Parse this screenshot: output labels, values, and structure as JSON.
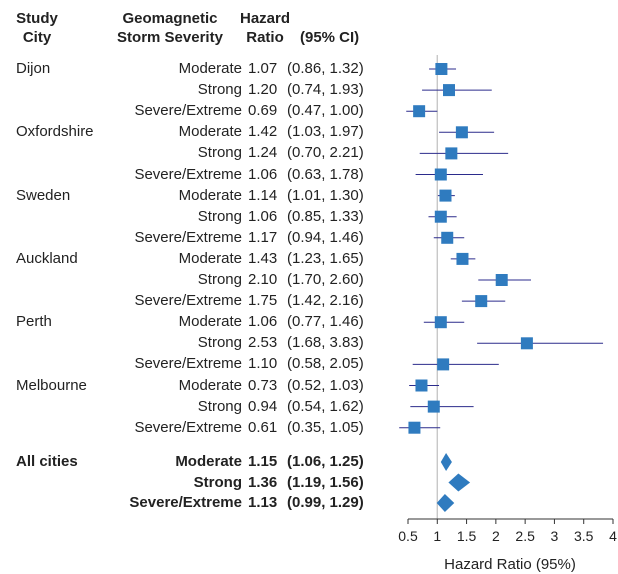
{
  "header": {
    "study_city": "Study City",
    "storm_severity": "Geomagnetic Storm Severity",
    "hazard_ratio": "Hazard Ratio",
    "ci": "(95% CI)"
  },
  "rows": [
    {
      "city": "Dijon",
      "severity": "Moderate",
      "hr_text": "1.07",
      "ci_text": "(0.86, 1.32)",
      "hr": 1.07,
      "lo": 0.86,
      "hi": 1.32
    },
    {
      "city": "",
      "severity": "Strong",
      "hr_text": "1.20",
      "ci_text": "(0.74, 1.93)",
      "hr": 1.2,
      "lo": 0.74,
      "hi": 1.93
    },
    {
      "city": "",
      "severity": "Severe/Extreme",
      "hr_text": "0.69",
      "ci_text": "(0.47, 1.00)",
      "hr": 0.69,
      "lo": 0.47,
      "hi": 1.0
    },
    {
      "city": "Oxfordshire",
      "severity": "Moderate",
      "hr_text": "1.42",
      "ci_text": "(1.03, 1.97)",
      "hr": 1.42,
      "lo": 1.03,
      "hi": 1.97
    },
    {
      "city": "",
      "severity": "Strong",
      "hr_text": "1.24",
      "ci_text": "(0.70, 2.21)",
      "hr": 1.24,
      "lo": 0.7,
      "hi": 2.21
    },
    {
      "city": "",
      "severity": "Severe/Extreme",
      "hr_text": "1.06",
      "ci_text": "(0.63, 1.78)",
      "hr": 1.06,
      "lo": 0.63,
      "hi": 1.78
    },
    {
      "city": "Sweden",
      "severity": "Moderate",
      "hr_text": "1.14",
      "ci_text": "(1.01, 1.30)",
      "hr": 1.14,
      "lo": 1.01,
      "hi": 1.3
    },
    {
      "city": "",
      "severity": "Strong",
      "hr_text": "1.06",
      "ci_text": "(0.85, 1.33)",
      "hr": 1.06,
      "lo": 0.85,
      "hi": 1.33
    },
    {
      "city": "",
      "severity": "Severe/Extreme",
      "hr_text": "1.17",
      "ci_text": "(0.94, 1.46)",
      "hr": 1.17,
      "lo": 0.94,
      "hi": 1.46
    },
    {
      "city": "Auckland",
      "severity": "Moderate",
      "hr_text": "1.43",
      "ci_text": "(1.23, 1.65)",
      "hr": 1.43,
      "lo": 1.23,
      "hi": 1.65
    },
    {
      "city": "",
      "severity": "Strong",
      "hr_text": "2.10",
      "ci_text": "(1.70, 2.60)",
      "hr": 2.1,
      "lo": 1.7,
      "hi": 2.6
    },
    {
      "city": "",
      "severity": "Severe/Extreme",
      "hr_text": "1.75",
      "ci_text": "(1.42, 2.16)",
      "hr": 1.75,
      "lo": 1.42,
      "hi": 2.16
    },
    {
      "city": "Perth",
      "severity": "Moderate",
      "hr_text": "1.06",
      "ci_text": "(0.77, 1.46)",
      "hr": 1.06,
      "lo": 0.77,
      "hi": 1.46
    },
    {
      "city": "",
      "severity": "Strong",
      "hr_text": "2.53",
      "ci_text": "(1.68, 3.83)",
      "hr": 2.53,
      "lo": 1.68,
      "hi": 3.83
    },
    {
      "city": "",
      "severity": "Severe/Extreme",
      "hr_text": "1.10",
      "ci_text": "(0.58, 2.05)",
      "hr": 1.1,
      "lo": 0.58,
      "hi": 2.05
    },
    {
      "city": "Melbourne",
      "severity": "Moderate",
      "hr_text": "0.73",
      "ci_text": "(0.52, 1.03)",
      "hr": 0.73,
      "lo": 0.52,
      "hi": 1.03
    },
    {
      "city": "",
      "severity": "Strong",
      "hr_text": "0.94",
      "ci_text": "(0.54, 1.62)",
      "hr": 0.94,
      "lo": 0.54,
      "hi": 1.62
    },
    {
      "city": "",
      "severity": "Severe/Extreme",
      "hr_text": "0.61",
      "ci_text": "(0.35, 1.05)",
      "hr": 0.61,
      "lo": 0.35,
      "hi": 1.05
    }
  ],
  "pooled": [
    {
      "city": "All cities",
      "severity": "Moderate",
      "hr_text": "1.15",
      "ci_text": "(1.06, 1.25)",
      "hr": 1.15,
      "lo": 1.06,
      "hi": 1.25
    },
    {
      "city": "",
      "severity": "Strong",
      "hr_text": "1.36",
      "ci_text": "(1.19, 1.56)",
      "hr": 1.36,
      "lo": 1.19,
      "hi": 1.56
    },
    {
      "city": "",
      "severity": "Severe/Extreme",
      "hr_text": "1.13",
      "ci_text": "(0.99, 1.29)",
      "hr": 1.13,
      "lo": 0.99,
      "hi": 1.29
    }
  ],
  "chart_data": {
    "type": "forest",
    "xlabel": "Hazard Ratio (95%)",
    "xlim": [
      0.5,
      4
    ],
    "ticks": [
      "0.5",
      "1",
      "1.5",
      "2",
      "2.5",
      "3",
      "3.5",
      "4"
    ],
    "reference_line": 1,
    "colors": {
      "marker": "#2f7bbf",
      "ci_line": "#2b2b8c",
      "ref_line": "#c8c8c8",
      "axis": "#333333"
    }
  }
}
